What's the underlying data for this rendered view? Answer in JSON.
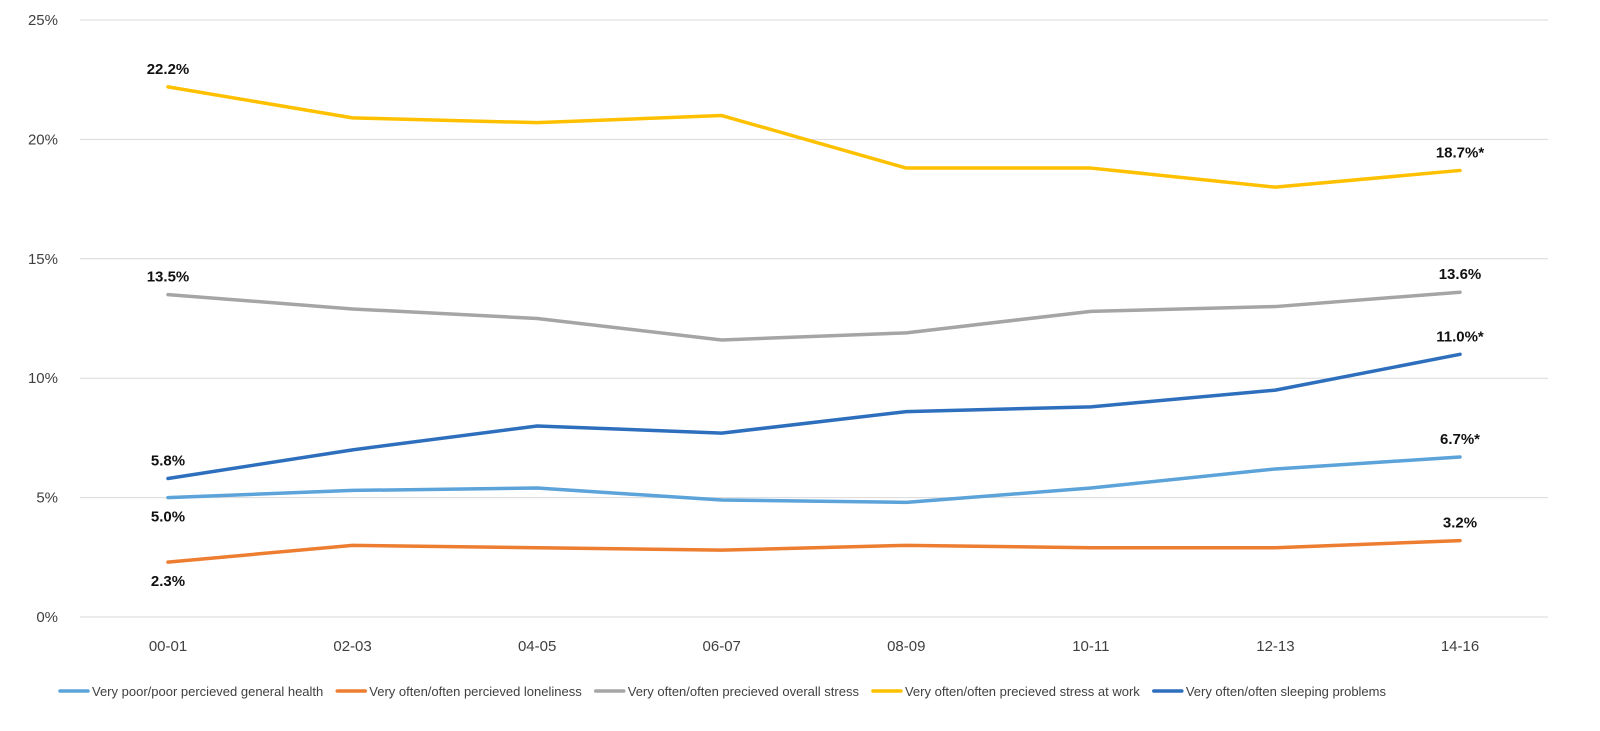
{
  "chart_data": {
    "type": "line",
    "title": "",
    "xlabel": "",
    "ylabel": "",
    "categories": [
      "00-01",
      "02-03",
      "04-05",
      "06-07",
      "08-09",
      "10-11",
      "12-13",
      "14-16"
    ],
    "ylim": [
      0,
      25
    ],
    "y_ticks": [
      0,
      5,
      10,
      15,
      20,
      25
    ],
    "y_tick_labels": [
      "0%",
      "5%",
      "10%",
      "15%",
      "20%",
      "25%"
    ],
    "grid": true,
    "legend_position": "bottom",
    "series": [
      {
        "name": "Very poor/poor percieved general health",
        "color": "#5ba3d9",
        "values": [
          5.0,
          5.3,
          5.4,
          4.9,
          4.8,
          5.4,
          6.2,
          6.7
        ],
        "labels": [
          {
            "index": 0,
            "text": "5.0%",
            "placement": "below"
          },
          {
            "index": 7,
            "text": "6.7%*",
            "placement": "above"
          }
        ]
      },
      {
        "name": "Very often/often percieved loneliness",
        "color": "#ed7d31",
        "values": [
          2.3,
          3.0,
          2.9,
          2.8,
          3.0,
          2.9,
          2.9,
          3.2
        ],
        "labels": [
          {
            "index": 0,
            "text": "2.3%",
            "placement": "below"
          },
          {
            "index": 7,
            "text": "3.2%",
            "placement": "above"
          }
        ]
      },
      {
        "name": "Very often/often precieved overall stress",
        "color": "#a5a5a5",
        "values": [
          13.5,
          12.9,
          12.5,
          11.6,
          11.9,
          12.8,
          13.0,
          13.6
        ],
        "labels": [
          {
            "index": 0,
            "text": "13.5%",
            "placement": "above"
          },
          {
            "index": 7,
            "text": "13.6%",
            "placement": "above"
          }
        ]
      },
      {
        "name": "Very often/often precieved stress at work",
        "color": "#ffc000",
        "values": [
          22.2,
          20.9,
          20.7,
          21.0,
          18.8,
          18.8,
          18.0,
          18.7
        ],
        "labels": [
          {
            "index": 0,
            "text": "22.2%",
            "placement": "above"
          },
          {
            "index": 7,
            "text": "18.7%*",
            "placement": "above"
          }
        ]
      },
      {
        "name": "Very often/often sleeping problems",
        "color": "#2e6fbd",
        "values": [
          5.8,
          7.0,
          8.0,
          7.7,
          8.6,
          8.8,
          9.5,
          11.0
        ],
        "labels": [
          {
            "index": 0,
            "text": "5.8%",
            "placement": "above"
          },
          {
            "index": 7,
            "text": "11.0%*",
            "placement": "above"
          }
        ]
      }
    ]
  }
}
